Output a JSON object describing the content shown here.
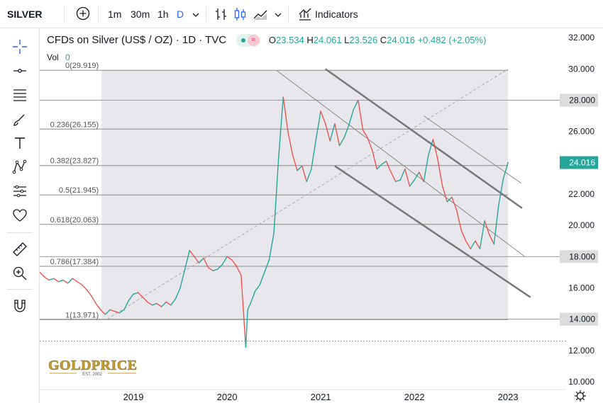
{
  "toolbar": {
    "symbol": "SILVER",
    "intervals": [
      "1m",
      "30m",
      "1h",
      "D"
    ],
    "active_interval": "D",
    "indicators_label": "Indicators"
  },
  "header": {
    "title": "CFDs on Silver (US$ / OZ) · 1D · TVC",
    "vol_label": "Vol",
    "vol_value": "0",
    "ohlc": {
      "o_label": "O",
      "o": "23.534",
      "h_label": "H",
      "h": "24.061",
      "l_label": "L",
      "l": "23.526",
      "c_label": "C",
      "c": "24.016",
      "change": "+0.482 (+2.05%)"
    }
  },
  "sidebar_tools": [
    "crosshair-icon",
    "horizontal-line-icon",
    "fib-retracement-icon",
    "brush-icon",
    "text-icon",
    "pattern-icon",
    "forecast-icon",
    "favorite-heart-icon",
    "ruler-icon",
    "zoom-in-icon",
    "magnet-icon"
  ],
  "colors": {
    "accent": "#2962ff",
    "up": "#26a69a",
    "down": "#ef5350",
    "fib_shade": "#e8e8ec",
    "logo_gold": "#c9a030"
  },
  "watermark": "GOLDPRICE",
  "watermark_sub": "EST. 2002",
  "chart_data": {
    "type": "line",
    "y_axis_side": "right",
    "ylim": [
      9.5,
      32.6
    ],
    "y_ticks": [
      "32.000",
      "30.000",
      "28.000",
      "26.000",
      "24.000",
      "22.000",
      "20.000",
      "18.000",
      "16.000",
      "14.000",
      "12.000",
      "10.000"
    ],
    "y_tick_values": [
      32,
      30,
      28,
      26,
      24,
      22,
      20,
      18,
      16,
      14,
      12,
      10
    ],
    "x_ticks": [
      "2019",
      "2020",
      "2021",
      "2022",
      "2023"
    ],
    "x_tick_values": [
      2019.0,
      2020.0,
      2021.0,
      2022.0,
      2023.0
    ],
    "xlim": [
      2018.0,
      2023.62
    ],
    "price_highlight": {
      "value": 24.016,
      "label": "24.016"
    },
    "level_badges": [
      {
        "value": 28.0,
        "label": "28.000"
      },
      {
        "value": 18.0,
        "label": "18.000"
      },
      {
        "value": 14.0,
        "label": "14.000"
      }
    ],
    "fibonacci": {
      "start": 2018.66,
      "end": 2023.0,
      "levels": [
        {
          "ratio": "0",
          "price": 29.919,
          "label": "0(29.919)"
        },
        {
          "ratio": "0.236",
          "price": 26.155,
          "label": "0.236(26.155)"
        },
        {
          "ratio": "0.382",
          "price": 23.827,
          "label": "0.382(23.827)"
        },
        {
          "ratio": "0.5",
          "price": 21.945,
          "label": "0.5(21.945)"
        },
        {
          "ratio": "0.618",
          "price": 20.063,
          "label": "0.618(20.063)"
        },
        {
          "ratio": "0.786",
          "price": 17.384,
          "label": "0.786(17.384)"
        },
        {
          "ratio": "1",
          "price": 13.971,
          "label": "1(13.971)"
        }
      ]
    },
    "extra_levels": [
      28.0,
      18.0,
      14.0,
      12.6
    ],
    "trendlines": [
      {
        "style": "dashed",
        "x": [
          2018.72,
          2023.0
        ],
        "y": [
          14.0,
          30.0
        ]
      },
      {
        "style": "thick",
        "x": [
          2021.05,
          2023.15
        ],
        "y": [
          30.0,
          21.1
        ]
      },
      {
        "style": "thick",
        "x": [
          2021.15,
          2023.24
        ],
        "y": [
          23.8,
          15.4
        ]
      },
      {
        "style": "thin",
        "x": [
          2020.53,
          2023.18
        ],
        "y": [
          29.9,
          18.0
        ]
      },
      {
        "style": "thin",
        "x": [
          2022.1,
          2023.14
        ],
        "y": [
          27.0,
          22.7
        ]
      }
    ],
    "series": [
      {
        "x": [
          2018.0,
          2018.05,
          2018.1,
          2018.15,
          2018.2,
          2018.25,
          2018.3,
          2018.35,
          2018.4,
          2018.45,
          2018.5,
          2018.55,
          2018.6,
          2018.65,
          2018.7,
          2018.75,
          2018.8,
          2018.85,
          2018.9,
          2018.95,
          2019.0,
          2019.05,
          2019.1,
          2019.15,
          2019.2,
          2019.25,
          2019.3,
          2019.35,
          2019.4,
          2019.45,
          2019.5,
          2019.55,
          2019.6,
          2019.65,
          2019.7,
          2019.75,
          2019.8,
          2019.85,
          2019.9,
          2019.95,
          2020.0,
          2020.05,
          2020.1,
          2020.15,
          2020.2,
          2020.22,
          2020.25,
          2020.3,
          2020.35,
          2020.4,
          2020.45,
          2020.5,
          2020.55,
          2020.6,
          2020.65,
          2020.7,
          2020.75,
          2020.8,
          2020.85,
          2020.9,
          2020.95,
          2021.0,
          2021.05,
          2021.1,
          2021.15,
          2021.2,
          2021.25,
          2021.3,
          2021.35,
          2021.4,
          2021.45,
          2021.5,
          2021.55,
          2021.6,
          2021.65,
          2021.7,
          2021.75,
          2021.8,
          2021.85,
          2021.9,
          2021.95,
          2022.0,
          2022.05,
          2022.1,
          2022.15,
          2022.2,
          2022.25,
          2022.3,
          2022.35,
          2022.4,
          2022.45,
          2022.5,
          2022.55,
          2022.6,
          2022.65,
          2022.7,
          2022.75,
          2022.8,
          2022.85,
          2022.9,
          2022.95,
          2023.0
        ],
        "values": [
          17.0,
          16.7,
          16.5,
          16.6,
          16.4,
          16.5,
          16.3,
          16.6,
          16.4,
          16.2,
          15.9,
          15.5,
          15.0,
          14.6,
          14.3,
          14.6,
          14.5,
          14.4,
          14.6,
          15.2,
          15.6,
          15.7,
          15.4,
          15.1,
          14.9,
          15.0,
          14.8,
          15.1,
          14.9,
          15.3,
          16.0,
          17.2,
          18.4,
          18.0,
          17.6,
          17.9,
          17.3,
          17.1,
          17.2,
          17.5,
          18.0,
          17.8,
          17.4,
          16.8,
          12.2,
          14.6,
          15.0,
          15.8,
          16.2,
          17.0,
          17.8,
          19.5,
          24.3,
          28.2,
          26.0,
          24.5,
          23.5,
          23.8,
          22.8,
          23.6,
          25.5,
          27.3,
          26.5,
          25.4,
          26.5,
          25.1,
          25.6,
          26.4,
          27.4,
          28.0,
          26.1,
          25.6,
          24.8,
          23.6,
          23.9,
          24.1,
          23.4,
          22.8,
          22.9,
          23.6,
          22.5,
          22.9,
          23.4,
          22.8,
          24.5,
          25.5,
          24.2,
          22.5,
          21.5,
          21.8,
          21.0,
          19.7,
          19.0,
          18.5,
          19.0,
          18.5,
          20.3,
          19.4,
          18.8,
          21.3,
          23.0,
          24.016
        ]
      }
    ]
  }
}
